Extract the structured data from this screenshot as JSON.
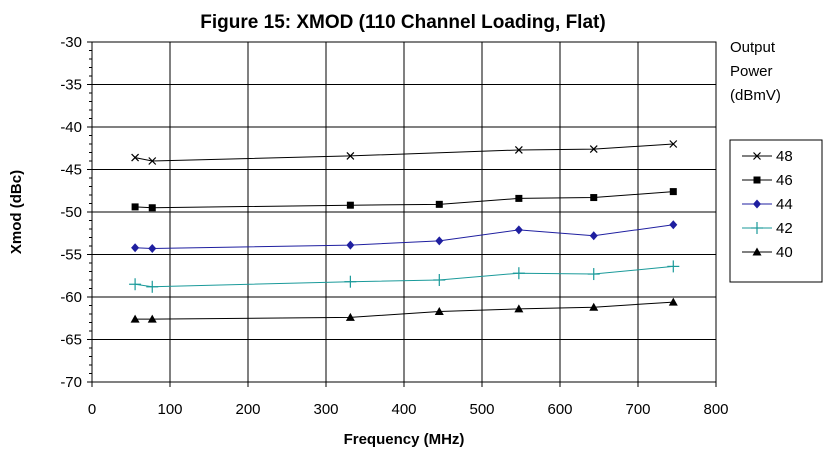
{
  "chart_data": {
    "type": "line",
    "title": "Figure 15: XMOD (110 Channel Loading, Flat)",
    "xlabel": "Frequency (MHz)",
    "ylabel": "Xmod (dBc)",
    "xlim": [
      0,
      800
    ],
    "ylim": [
      -70,
      -30
    ],
    "xticks": [
      0,
      100,
      200,
      300,
      400,
      500,
      600,
      700,
      800
    ],
    "yticks": [
      -30,
      -35,
      -40,
      -45,
      -50,
      -55,
      -60,
      -65,
      -70
    ],
    "grid": true,
    "legend_title": [
      "Output",
      "Power",
      "(dBmV)"
    ],
    "legend_position": "right",
    "x": [
      55.25,
      77.25,
      331.25,
      445.25,
      547.25,
      643.25,
      745.25
    ],
    "series": [
      {
        "name": "48",
        "color": "#000000",
        "marker": "x-icon",
        "values": [
          -43.6,
          -44.0,
          -43.4,
          null,
          -42.7,
          -42.6,
          -42.0
        ]
      },
      {
        "name": "46",
        "color": "#000000",
        "marker": "square-icon",
        "values": [
          -49.4,
          -49.5,
          -49.2,
          -49.1,
          -48.4,
          -48.3,
          -47.6
        ]
      },
      {
        "name": "44",
        "color": "#1f1fa0",
        "marker": "diamond-icon",
        "values": [
          -54.2,
          -54.3,
          -53.9,
          -53.4,
          -52.1,
          -52.8,
          -51.5
        ]
      },
      {
        "name": "42",
        "color": "#1a9a9a",
        "marker": "plus-icon",
        "values": [
          -58.5,
          -58.8,
          -58.2,
          -58.0,
          -57.2,
          -57.3,
          -56.4
        ]
      },
      {
        "name": "40",
        "color": "#000000",
        "marker": "triangle-icon",
        "values": [
          -62.6,
          -62.6,
          -62.4,
          -61.7,
          -61.4,
          -61.2,
          -60.6
        ]
      }
    ]
  }
}
